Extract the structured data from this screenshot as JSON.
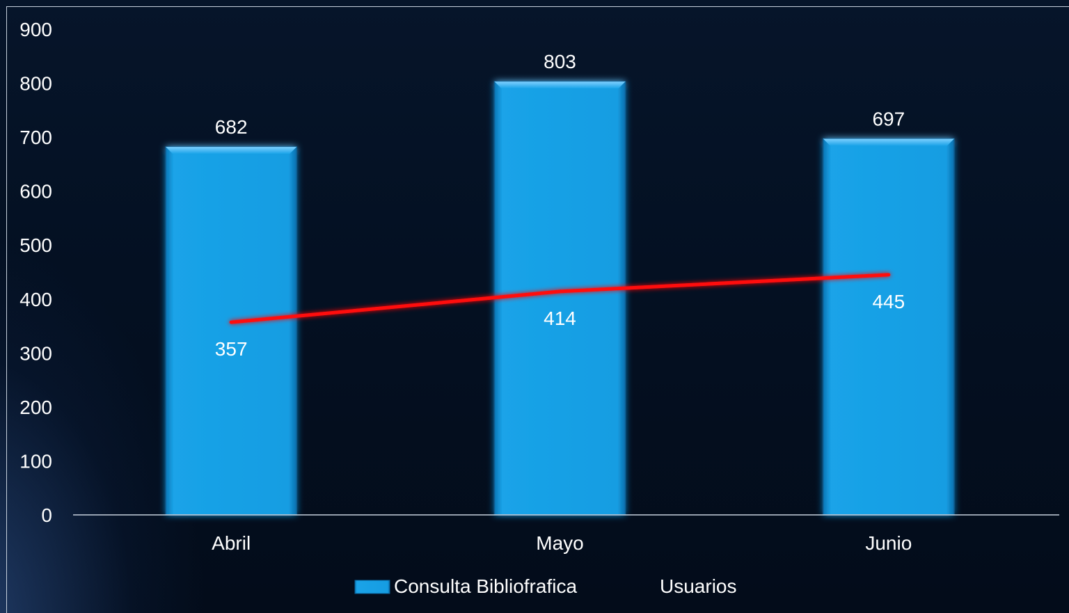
{
  "chart_data": {
    "type": "bar",
    "categories": [
      "Abril",
      "Mayo",
      "Junio"
    ],
    "series": [
      {
        "name": "Consulta Bibliofrafica",
        "kind": "bar",
        "values": [
          682,
          803,
          697
        ],
        "color": "#169de2"
      },
      {
        "name": "Usuarios",
        "kind": "line",
        "values": [
          357,
          414,
          445
        ],
        "color": "#ff1010"
      }
    ],
    "yticks": [
      "0",
      "100",
      "200",
      "300",
      "400",
      "500",
      "600",
      "700",
      "800",
      "900"
    ],
    "ylim": [
      0,
      900
    ],
    "legend": {
      "position": "bottom",
      "bar_label": "Consulta Bibliofrafica",
      "line_label": "Usuarios"
    },
    "grid": false,
    "colors": {
      "background": "#03101f",
      "bar": "#169de2",
      "line": "#ff1010",
      "text": "#ffffff",
      "axis": "#c8d2de"
    }
  }
}
